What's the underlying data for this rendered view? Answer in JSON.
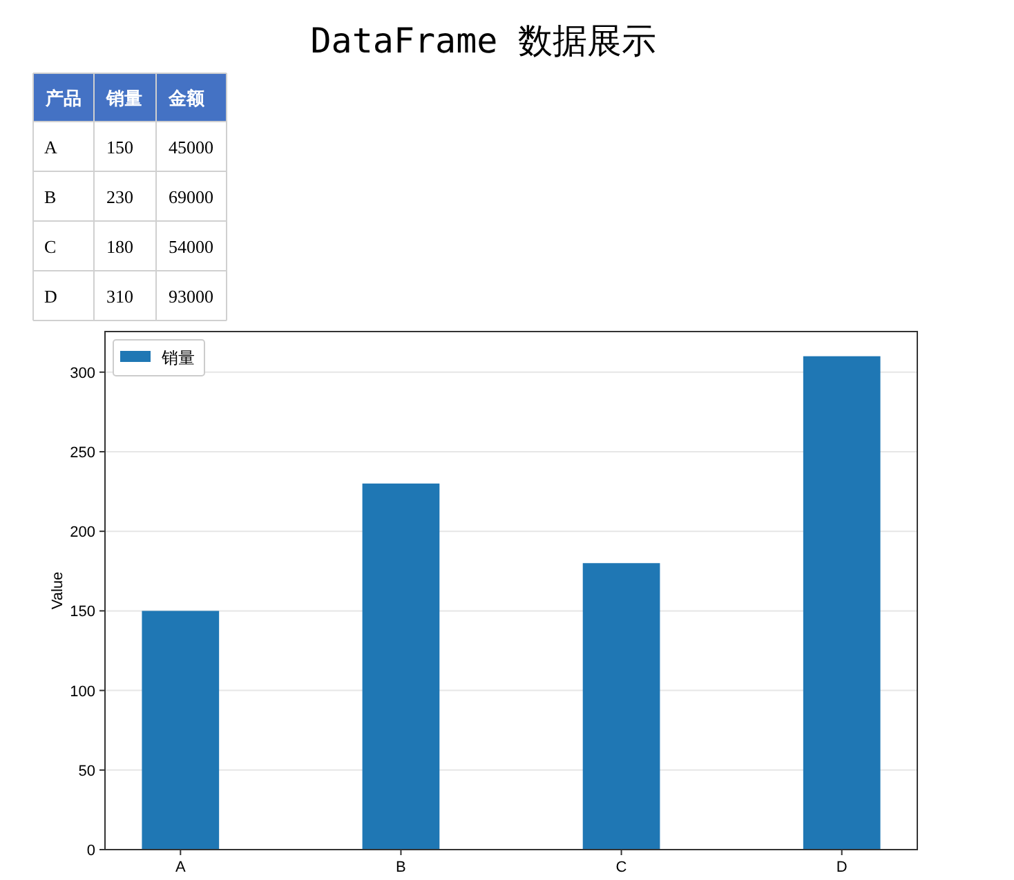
{
  "chart_data": [
    {
      "type": "other",
      "title": "DataFrame 数据展示",
      "xlabel": "产品",
      "categories": [
        "A",
        "B",
        "C",
        "D"
      ],
      "series": [
        {
          "name": "销量",
          "values": [
            150,
            230,
            180,
            310
          ]
        },
        {
          "name": "金额",
          "values": [
            45000,
            69000,
            54000,
            93000
          ]
        }
      ],
      "data_labels": true
    },
    {
      "type": "bar",
      "categories": [
        "A",
        "B",
        "C",
        "D"
      ],
      "series": [
        {
          "name": "销量",
          "color": "#1f77b4",
          "values": [
            150,
            230,
            180,
            310
          ]
        }
      ],
      "ylabel": "Value",
      "ylim": [
        0,
        325.5
      ],
      "yticks": [
        0,
        50,
        100,
        150,
        200,
        250,
        300
      ],
      "grid": "y",
      "legend": "top left"
    }
  ]
}
